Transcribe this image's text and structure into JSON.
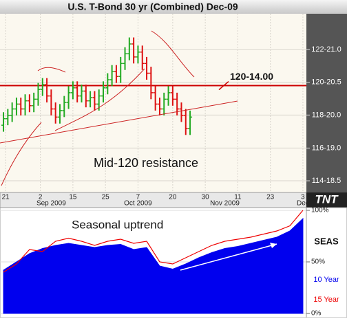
{
  "chart_data": [
    {
      "type": "ohlc",
      "title": "U.S. T-Bond 30 yr (Combined) Dec-09",
      "x": [
        0,
        1,
        2,
        3,
        4,
        5,
        6,
        7,
        8,
        9,
        10,
        11,
        12,
        13,
        14,
        15,
        16,
        17,
        18,
        19,
        20,
        21,
        22,
        23,
        24,
        25,
        26,
        27,
        28,
        29,
        30,
        31,
        32,
        33,
        34,
        35,
        36,
        37,
        38,
        39,
        40,
        41,
        42,
        43
      ],
      "open": [
        118.0,
        118.4,
        118.6,
        119.0,
        119.3,
        119.0,
        119.5,
        119.2,
        119.6,
        120.2,
        120.5,
        119.8,
        119.0,
        118.5,
        118.9,
        119.4,
        120.0,
        120.3,
        119.8,
        120.1,
        119.5,
        119.7,
        119.3,
        119.8,
        120.3,
        120.8,
        121.3,
        121.0,
        121.8,
        122.4,
        123.0,
        122.2,
        122.5,
        121.8,
        121.2,
        120.0,
        119.3,
        119.0,
        119.6,
        120.0,
        119.6,
        119.0,
        118.6,
        117.8
      ],
      "high": [
        118.8,
        119.0,
        119.4,
        119.7,
        119.7,
        119.9,
        119.9,
        120.0,
        120.6,
        120.9,
        120.9,
        120.2,
        119.4,
        119.3,
        119.8,
        120.4,
        120.7,
        120.7,
        120.5,
        120.5,
        120.1,
        120.1,
        120.2,
        120.7,
        121.2,
        121.7,
        121.7,
        122.2,
        122.8,
        123.4,
        123.4,
        122.9,
        122.9,
        122.2,
        121.6,
        120.4,
        119.7,
        120.0,
        120.4,
        120.4,
        120.0,
        119.4,
        119.0,
        118.9
      ],
      "low": [
        117.6,
        118.0,
        118.2,
        118.6,
        118.6,
        118.6,
        118.8,
        118.8,
        119.2,
        119.8,
        119.4,
        118.6,
        118.1,
        118.1,
        118.5,
        119.0,
        119.6,
        119.4,
        119.4,
        119.1,
        119.1,
        118.9,
        118.9,
        119.4,
        119.9,
        120.4,
        120.6,
        120.6,
        121.4,
        122.0,
        121.8,
        121.8,
        121.4,
        120.8,
        119.6,
        118.9,
        118.6,
        118.6,
        119.2,
        119.2,
        118.6,
        118.2,
        117.4,
        117.4
      ],
      "close": [
        118.4,
        118.6,
        119.0,
        119.3,
        119.0,
        119.5,
        119.2,
        119.6,
        120.2,
        120.5,
        119.8,
        119.0,
        118.5,
        118.9,
        119.4,
        120.0,
        120.3,
        119.8,
        120.1,
        119.5,
        119.7,
        119.3,
        119.8,
        120.3,
        120.8,
        121.3,
        121.0,
        121.8,
        122.4,
        123.0,
        122.2,
        122.5,
        121.8,
        121.2,
        120.0,
        119.3,
        119.0,
        119.6,
        120.0,
        119.6,
        119.0,
        118.6,
        117.8,
        118.5
      ],
      "up_color": "#22aa22",
      "down_color": "#dd1111",
      "xlim": [
        -0.8,
        69.8
      ],
      "xticks": [
        {
          "value": 0.5,
          "label": "21"
        },
        {
          "value": 8.5,
          "label": "2"
        },
        {
          "value": 16,
          "label": "15"
        },
        {
          "value": 23.5,
          "label": "25"
        },
        {
          "value": 31,
          "label": "7"
        },
        {
          "value": 39,
          "label": "20"
        },
        {
          "value": 46.5,
          "label": "30"
        },
        {
          "value": 54,
          "label": "11"
        },
        {
          "value": 61.5,
          "label": "23"
        },
        {
          "value": 69,
          "label": "3"
        }
      ],
      "xticks2": [
        {
          "value": 11,
          "label": "Sep 2009"
        },
        {
          "value": 31,
          "label": "Oct 2009"
        },
        {
          "value": 51,
          "label": "Nov 2009"
        },
        {
          "value": 69,
          "label": "Dec"
        }
      ],
      "ylim": [
        113.86,
        124.86
      ],
      "yticks": [
        {
          "value": 114.578125,
          "label": "114-18.5"
        },
        {
          "value": 116.59375,
          "label": "116-19.0"
        },
        {
          "value": 118.625,
          "label": "118-20.0"
        },
        {
          "value": 120.640625,
          "label": "120-20.5"
        },
        {
          "value": 122.65625,
          "label": "122-21.0"
        }
      ],
      "grid": true,
      "resistance": {
        "value": 120.4375,
        "label": "120-14.00"
      },
      "annotation": "Mid-120 resistance",
      "logo": "TNT"
    },
    {
      "type": "area",
      "x": [
        0,
        3,
        6,
        9,
        12,
        15,
        18,
        21,
        24,
        27,
        30,
        33,
        36,
        39,
        42,
        45,
        48,
        51,
        54,
        57,
        60,
        63,
        66,
        69
      ],
      "series": [
        {
          "name": "10 Year",
          "color": "#0000ee",
          "style": "area",
          "values": [
            42,
            50,
            58,
            63,
            66,
            68,
            66,
            64,
            66,
            67,
            62,
            64,
            46,
            43,
            48,
            54,
            59,
            63,
            65,
            68,
            71,
            74,
            80,
            92
          ]
        },
        {
          "name": "15 Year",
          "color": "#ee0000",
          "style": "line",
          "values": [
            40,
            48,
            62,
            60,
            70,
            73,
            70,
            66,
            70,
            72,
            68,
            70,
            50,
            48,
            54,
            60,
            66,
            70,
            72,
            74,
            77,
            80,
            85,
            100
          ]
        }
      ],
      "xlim": [
        -0.8,
        69.8
      ],
      "ylim": [
        0,
        100
      ],
      "yticks": [
        {
          "value": 0,
          "label": "0%"
        },
        {
          "value": 50,
          "label": "50%"
        },
        {
          "value": 100,
          "label": "100%"
        }
      ],
      "legend_title": "SEAS",
      "annotation": "Seasonal uptrend"
    }
  ]
}
